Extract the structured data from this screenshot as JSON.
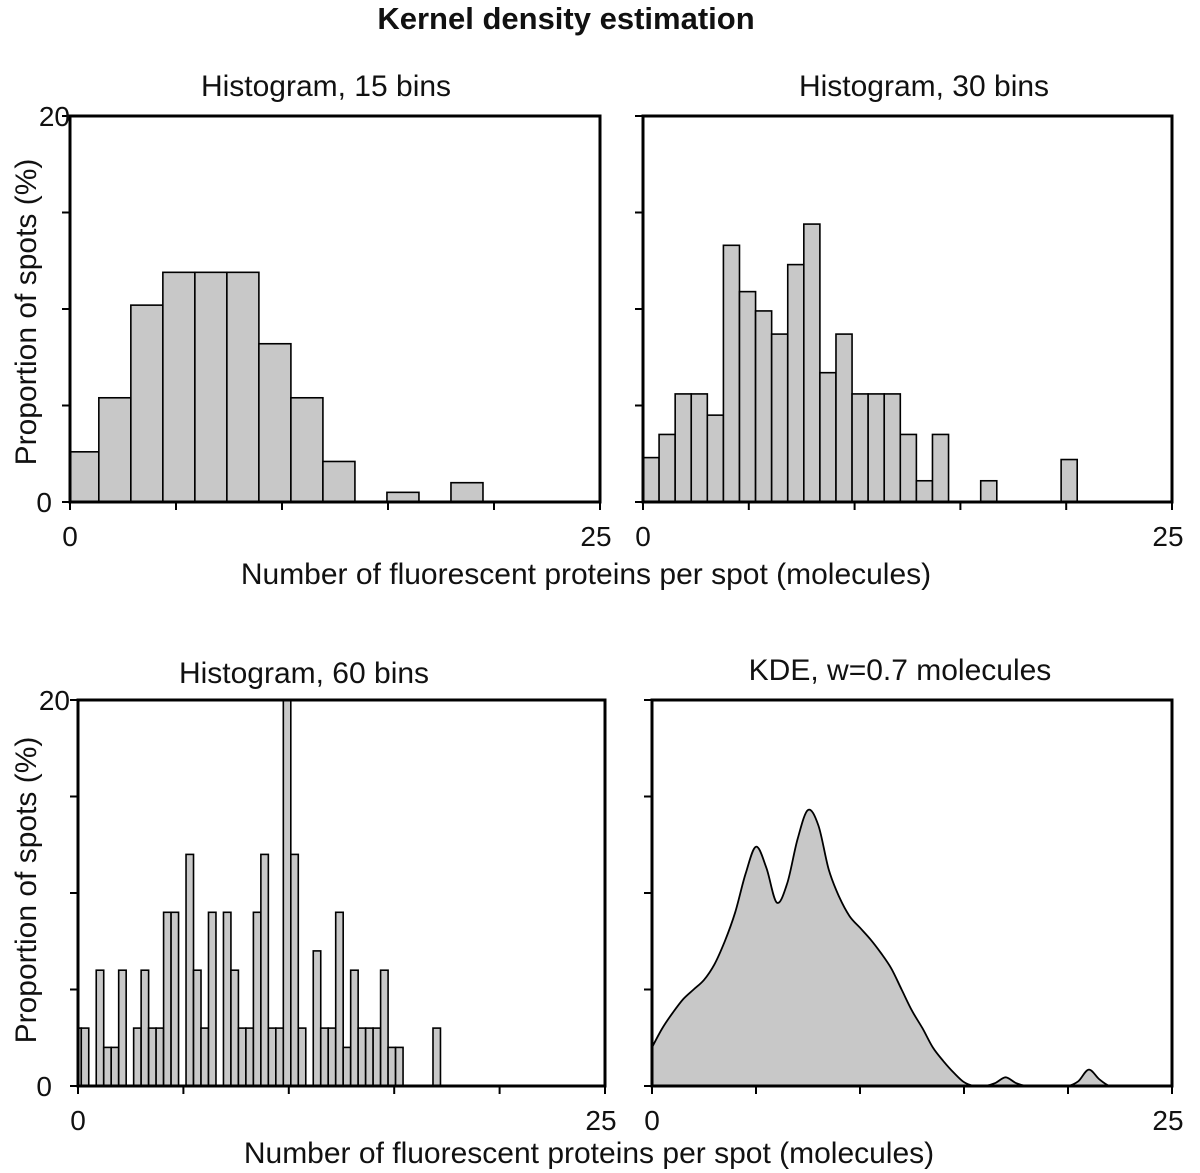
{
  "figure": {
    "title": "Kernel density estimation",
    "xlabel_top": "Number of fluorescent proteins per spot (molecules)",
    "xlabel_bottom": "Number of fluorescent proteins per spot (molecules)",
    "ylabel_top": "Proportion of spots (%)",
    "ylabel_bottom": "Proportion of spots (%)"
  },
  "chart_data": [
    {
      "type": "bar",
      "title": "Histogram, 15 bins",
      "xlim": [
        0,
        25
      ],
      "ylim": [
        0,
        20
      ],
      "x_ticks": [
        "0",
        "25"
      ],
      "y_ticks": [
        "0",
        "20"
      ],
      "bin_edges": [
        -0.15,
        1.36,
        2.87,
        4.38,
        5.89,
        7.4,
        8.91,
        10.42,
        11.93,
        13.44,
        14.95,
        16.46,
        17.97,
        19.48,
        20.99,
        22.5
      ],
      "values": [
        2.6,
        5.4,
        10.2,
        11.9,
        11.9,
        11.9,
        8.2,
        5.4,
        2.1,
        0,
        0.5,
        0,
        1.0,
        0,
        0
      ]
    },
    {
      "type": "bar",
      "title": "Histogram, 30 bins",
      "xlim": [
        0,
        25
      ],
      "ylim": [
        0,
        20
      ],
      "x_ticks": [
        "0",
        "25"
      ],
      "y_ticks": [],
      "bin_edges": [
        0.0,
        0.76,
        1.52,
        2.28,
        3.04,
        3.8,
        4.56,
        5.32,
        6.08,
        6.84,
        7.6,
        8.36,
        9.12,
        9.88,
        10.64,
        11.4,
        12.16,
        12.92,
        13.68,
        14.44,
        15.2,
        15.96,
        16.72,
        17.48,
        18.24,
        19.0,
        19.76,
        20.52,
        21.28,
        22.04,
        22.8
      ],
      "values": [
        2.3,
        3.5,
        5.6,
        5.6,
        4.5,
        13.3,
        10.9,
        9.9,
        8.7,
        12.3,
        14.4,
        6.7,
        8.7,
        5.6,
        5.6,
        5.6,
        3.5,
        1.1,
        3.5,
        0,
        0,
        1.1,
        0,
        0,
        0,
        0,
        2.2,
        0,
        0,
        0
      ]
    },
    {
      "type": "bar",
      "title": "Histogram, 60 bins",
      "xlim": [
        0,
        25
      ],
      "ylim": [
        0,
        20
      ],
      "x_ticks": [
        "0",
        "25"
      ],
      "y_ticks": [
        "0",
        "20"
      ],
      "bin_start": -0.2,
      "bin_width": 0.355,
      "values": [
        3,
        3,
        0,
        6,
        2,
        2,
        6,
        0,
        3,
        6,
        3,
        3,
        9,
        9,
        0,
        12,
        6,
        3,
        9,
        0,
        9,
        6,
        3,
        3,
        9,
        12,
        3,
        3,
        20,
        12,
        3,
        0,
        7,
        3,
        3,
        9,
        2,
        6,
        3,
        3,
        3,
        6,
        2,
        2,
        0,
        0,
        0,
        0,
        3,
        0,
        0,
        0,
        0,
        0,
        0,
        0,
        0,
        0,
        0,
        0
      ]
    },
    {
      "type": "area",
      "title": "KDE, w=0.7 molecules",
      "xlim": [
        0,
        25
      ],
      "ylim": [
        0,
        20
      ],
      "x_ticks": [
        "0",
        "25"
      ],
      "y_ticks": [],
      "x": [
        0,
        0.5,
        1.0,
        1.5,
        2.0,
        2.5,
        3.0,
        3.5,
        4.0,
        4.5,
        5.0,
        5.5,
        6.0,
        6.5,
        7.0,
        7.5,
        8.0,
        8.5,
        9.0,
        9.5,
        10.0,
        10.5,
        11.0,
        11.5,
        12.0,
        12.5,
        13.0,
        13.5,
        14.0,
        14.5,
        15.0,
        15.5,
        16.0,
        16.5,
        17.0,
        17.5,
        18.0,
        18.5,
        19.0,
        19.5,
        20.0,
        20.5,
        21.0,
        21.5,
        22.0,
        22.5,
        23.0,
        23.5,
        24.0,
        25.0
      ],
      "y": [
        2.0,
        3.0,
        3.8,
        4.5,
        5.0,
        5.5,
        6.3,
        7.5,
        9.0,
        11.0,
        12.4,
        11.3,
        9.5,
        10.5,
        12.8,
        14.3,
        13.5,
        11.2,
        9.8,
        8.8,
        8.2,
        7.6,
        6.9,
        6.1,
        5.0,
        3.9,
        3.0,
        2.0,
        1.3,
        0.7,
        0.2,
        0.0,
        0.0,
        0.15,
        0.45,
        0.15,
        0.0,
        0.0,
        0.0,
        0.0,
        0.0,
        0.25,
        0.85,
        0.35,
        0.0,
        0.0,
        0.0,
        0.0,
        0.0,
        0.0
      ]
    }
  ]
}
